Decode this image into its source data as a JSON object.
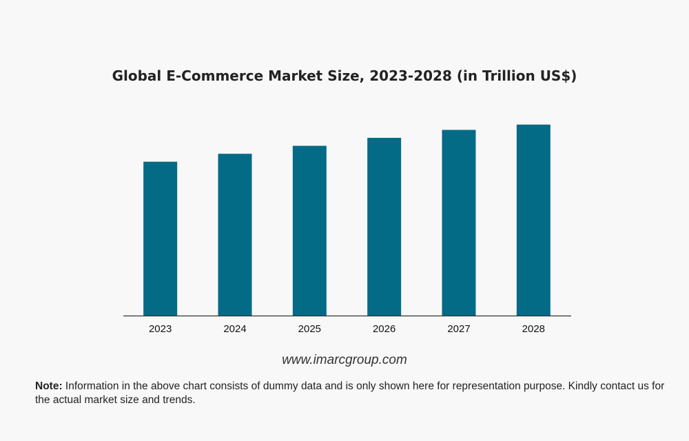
{
  "chart_data": {
    "type": "bar",
    "title": "Global E-Commerce Market Size, 2023-2028 (in Trillion US$)",
    "categories": [
      "2023",
      "2024",
      "2025",
      "2026",
      "2027",
      "2028"
    ],
    "values": [
      5.8,
      6.1,
      6.4,
      6.7,
      7.0,
      7.2
    ],
    "ylim": [
      0,
      8
    ],
    "xlabel": "",
    "ylabel": "",
    "grid": false,
    "bar_color": "#046b87",
    "axis_color": "#333333"
  },
  "footer": {
    "website": "www.imarcgroup.com",
    "note_label": "Note:",
    "note_text": " Information in the above chart consists of dummy data and is only shown here for representation purpose. Kindly contact us for the actual market size and trends."
  }
}
